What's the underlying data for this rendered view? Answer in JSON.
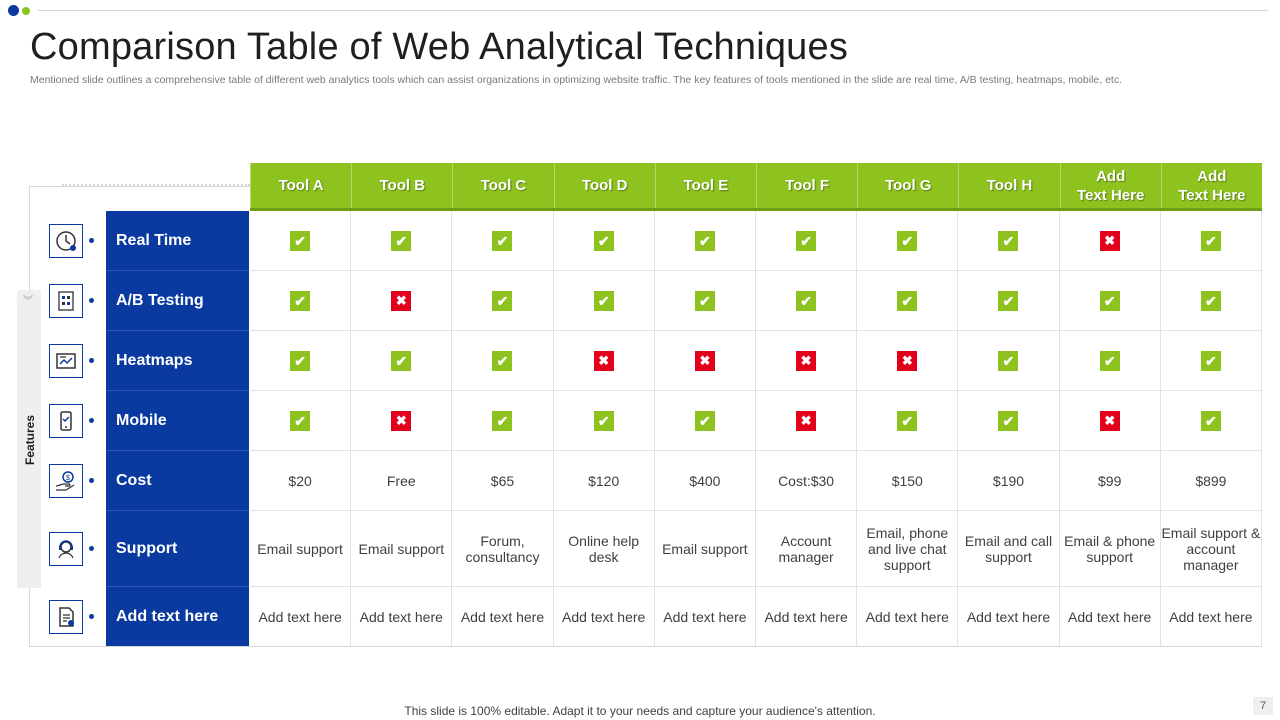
{
  "slide": {
    "title": "Comparison Table of Web Analytical Techniques",
    "subtitle": "Mentioned slide outlines a comprehensive table of different web analytics tools which can assist organizations in optimizing website traffic. The key features of tools mentioned in the slide are real time, A/B testing, heatmaps, mobile, etc.",
    "side_label": "Features",
    "footer": "This slide is 100% editable. Adapt it to your needs and capture your audience's attention.",
    "page_number": "7"
  },
  "colors": {
    "accent_green": "#8dc21f",
    "accent_blue": "#0a3aa0",
    "mark_red": "#e3001b",
    "dot_green": "#8dc21f"
  },
  "table": {
    "tools": [
      "Tool A",
      "Tool B",
      "Tool C",
      "Tool D",
      "Tool E",
      "Tool F",
      "Tool G",
      "Tool H",
      "Add Text Here",
      "Add Text Here"
    ],
    "features": [
      {
        "label": "Real Time",
        "icon": "clock-icon",
        "type": "check",
        "values": [
          true,
          true,
          true,
          true,
          true,
          true,
          true,
          true,
          false,
          true
        ]
      },
      {
        "label": "A/B Testing",
        "icon": "ab-test-icon",
        "type": "check",
        "values": [
          true,
          false,
          true,
          true,
          true,
          true,
          true,
          true,
          true,
          true
        ]
      },
      {
        "label": "Heatmaps",
        "icon": "heatmap-icon",
        "type": "check",
        "values": [
          true,
          true,
          true,
          false,
          false,
          false,
          false,
          true,
          true,
          true
        ]
      },
      {
        "label": "Mobile",
        "icon": "mobile-icon",
        "type": "check",
        "values": [
          true,
          false,
          true,
          true,
          true,
          false,
          true,
          true,
          false,
          true
        ]
      },
      {
        "label": "Cost",
        "icon": "cost-icon",
        "type": "text",
        "values": [
          "$20",
          "Free",
          "$65",
          "$120",
          "$400",
          "Cost:$30",
          "$150",
          "$190",
          "$99",
          "$899"
        ]
      },
      {
        "label": "Support",
        "icon": "support-icon",
        "type": "text",
        "values": [
          "Email support",
          "Email support",
          "Forum, consultancy",
          "Online help desk",
          "Email support",
          "Account manager",
          "Email, phone and live chat support",
          "Email and call support",
          "Email & phone support",
          "Email support & account manager"
        ]
      },
      {
        "label": "Add text here",
        "icon": "document-icon",
        "type": "text",
        "values": [
          "Add text here",
          "Add text here",
          "Add text here",
          "Add text here",
          "Add text here",
          "Add text here",
          "Add text here",
          "Add text here",
          "Add text here",
          "Add text here"
        ]
      }
    ]
  }
}
